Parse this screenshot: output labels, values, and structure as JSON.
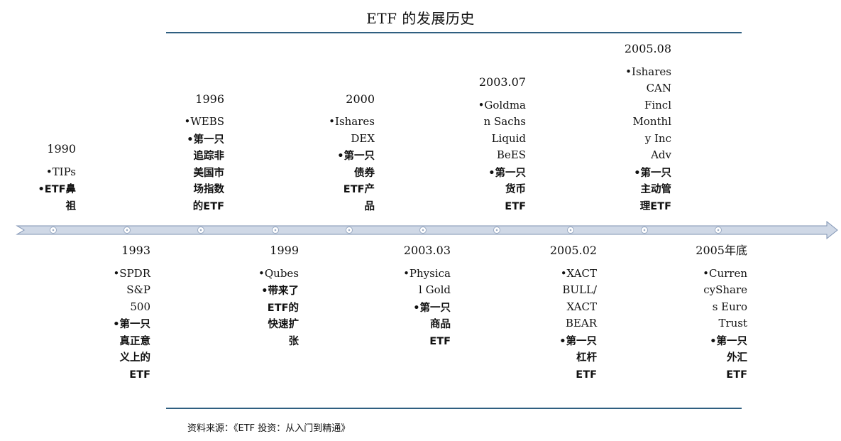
{
  "title": "ETF 的发展历史",
  "source": "资料来源：《ETF 投资：从入门到精通》",
  "colors": {
    "rule": "#2f5f80",
    "arrow_fill": "#cfd8e6",
    "arrow_stroke": "#7f93b3"
  },
  "events": [
    {
      "year": "1990",
      "items": [
        "•TIPs",
        "•ETF鼻\n祖"
      ]
    },
    {
      "year": "1993",
      "items": [
        "•SPDR\nS&P\n500",
        "•第一只\n真正意\n义上的\nETF"
      ]
    },
    {
      "year": "1996",
      "items": [
        "•WEBS",
        "•第一只\n追踪非\n美国市\n场指数\n的ETF"
      ]
    },
    {
      "year": "1999",
      "items": [
        "•Qubes",
        "•带来了\nETF的\n快速扩\n张"
      ]
    },
    {
      "year": "2000",
      "items": [
        "•Ishares\nDEX",
        "•第一只\n债券\nETF产\n品"
      ]
    },
    {
      "year": "2003.03",
      "items": [
        "•Physica\nl Gold",
        "•第一只\n商品\nETF"
      ]
    },
    {
      "year": "2003.07",
      "items": [
        "•Goldma\nn Sachs\nLiquid\nBeES",
        "•第一只\n货币\nETF"
      ]
    },
    {
      "year": "2005.02",
      "items": [
        "•XACT\nBULL/\nXACT\nBEAR",
        "•第一只\n杠杆\nETF"
      ]
    },
    {
      "year": "2005.08",
      "items": [
        "•Ishares\nCAN\nFincl\nMonthl\ny Inc\nAdv",
        "•第一只\n主动管\n理ETF"
      ]
    },
    {
      "year": "2005年底",
      "items": [
        "•Curren\ncyShare\ns Euro\nTrust",
        "•第一只\n外汇\nETF"
      ]
    }
  ]
}
